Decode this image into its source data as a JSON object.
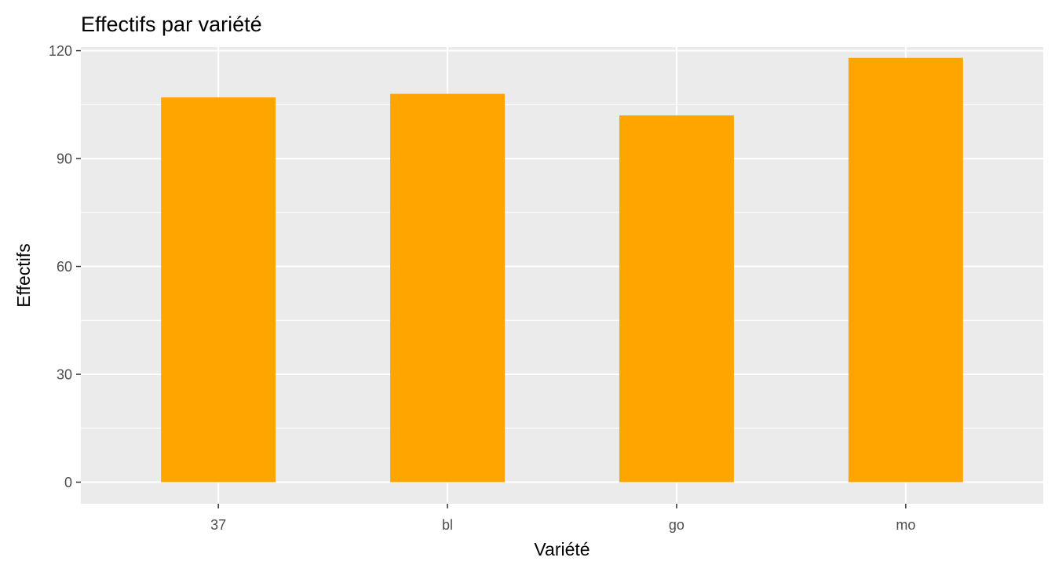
{
  "chart_data": {
    "type": "bar",
    "title": "Effectifs par variété",
    "xlabel": "Variété",
    "ylabel": "Effectifs",
    "categories": [
      "37",
      "bl",
      "go",
      "mo"
    ],
    "values": [
      107,
      108,
      102,
      118
    ],
    "ylim": [
      -6,
      121
    ],
    "yticks": [
      0,
      30,
      60,
      90,
      120
    ],
    "grid": true,
    "legend": "none",
    "colors": {
      "bar": "#FFA500",
      "panel_background": "#EBEBEB",
      "grid": "#FFFFFF",
      "tick_text": "#4D4D4D",
      "tick_mark": "#333333"
    }
  }
}
